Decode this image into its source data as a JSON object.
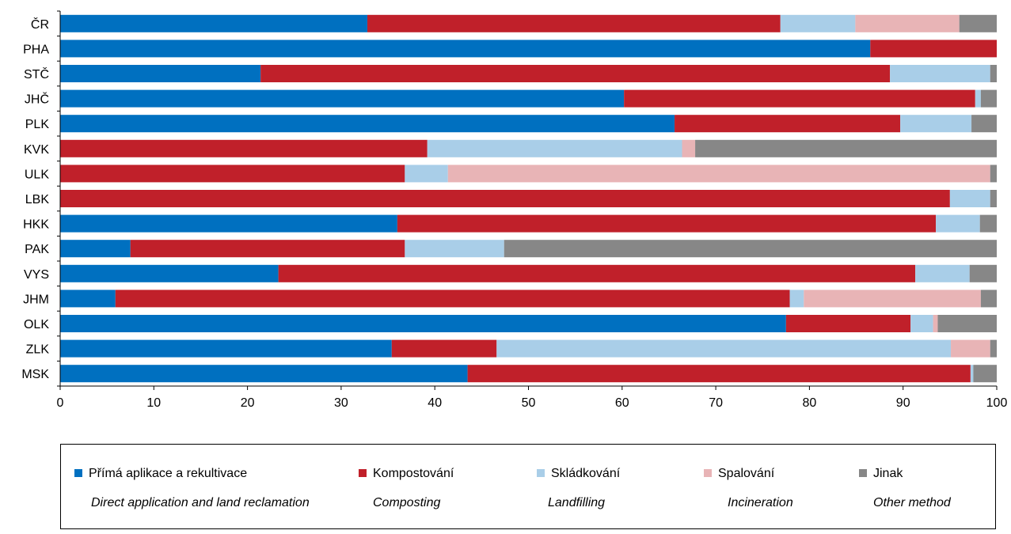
{
  "chart_data": {
    "type": "bar",
    "orientation": "horizontal",
    "stacked": true,
    "categories": [
      "ČR",
      "PHA",
      "STČ",
      "JHČ",
      "PLK",
      "KVK",
      "ULK",
      "LBK",
      "HKK",
      "PAK",
      "VYS",
      "JHM",
      "OLK",
      "ZLK",
      "MSK"
    ],
    "xlim": [
      0,
      100
    ],
    "xticks": [
      0,
      10,
      20,
      30,
      40,
      50,
      60,
      70,
      80,
      90,
      100
    ],
    "grid": false,
    "legend_position": "bottom",
    "series": [
      {
        "name": "Přímá aplikace a rekultivace",
        "name_en": "Direct application and land reclamation",
        "color": "#0070C0",
        "values": [
          32.8,
          86.5,
          21.4,
          60.2,
          65.6,
          0,
          0,
          0,
          36.0,
          7.5,
          23.3,
          5.9,
          77.5,
          35.4,
          43.5
        ]
      },
      {
        "name": "Kompostování",
        "name_en": "Composting",
        "color": "#C0202A",
        "values": [
          44.1,
          13.5,
          67.2,
          37.5,
          24.1,
          39.2,
          36.8,
          95.0,
          57.5,
          29.3,
          68.0,
          72.0,
          13.3,
          11.2,
          53.7
        ]
      },
      {
        "name": "Skládkování",
        "name_en": "Landfilling",
        "color": "#A9CEE8",
        "values": [
          8.0,
          0,
          10.7,
          0.6,
          7.6,
          27.2,
          4.6,
          4.3,
          4.7,
          10.6,
          5.8,
          1.5,
          2.4,
          48.5,
          0.3
        ]
      },
      {
        "name": "Spalování",
        "name_en": "Incineration",
        "color": "#E8B4B6",
        "values": [
          11.1,
          0,
          0,
          0,
          0,
          1.4,
          57.9,
          0,
          0,
          0,
          0,
          18.9,
          0.5,
          4.2,
          0
        ]
      },
      {
        "name": "Jinak",
        "name_en": "Other method",
        "color": "#878787",
        "values": [
          4.0,
          0,
          0.7,
          1.7,
          2.7,
          32.2,
          0.7,
          0.7,
          1.8,
          52.6,
          2.9,
          1.7,
          6.3,
          0.7,
          2.5
        ]
      }
    ]
  }
}
